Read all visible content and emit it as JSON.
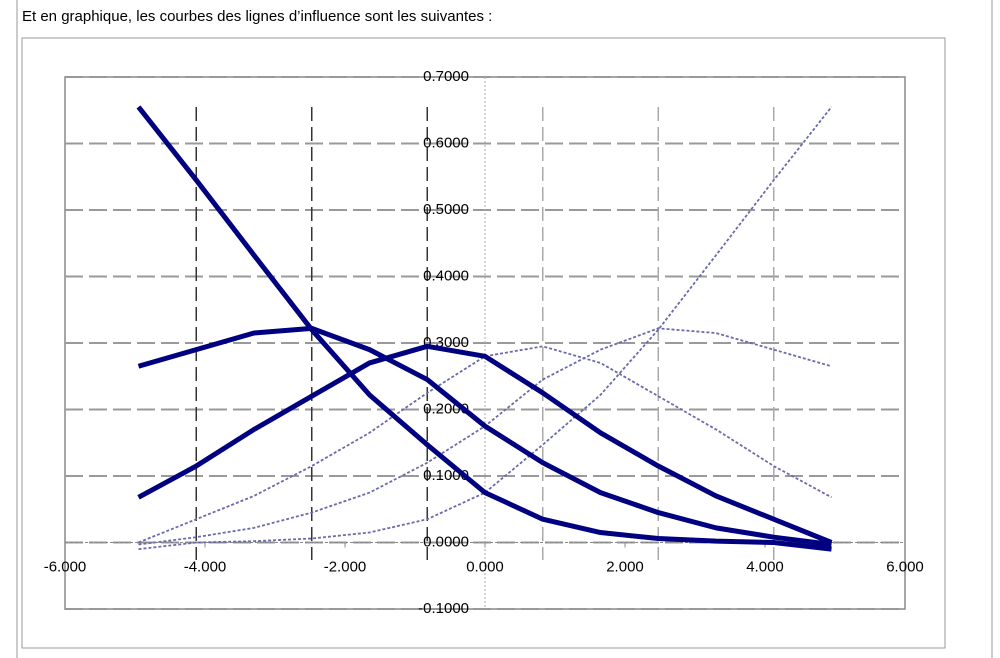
{
  "caption": "Et en graphique, les courbes des lignes d’influence  sont les suivantes :",
  "chart_data": {
    "type": "line",
    "x": [
      -4.95,
      -4.125,
      -3.3,
      -2.475,
      -1.65,
      -0.825,
      0,
      0.825,
      1.65,
      2.475,
      3.3,
      4.125,
      4.95
    ],
    "series": [
      {
        "color": "#000080",
        "style": "solid",
        "values": [
          0.655,
          0.545,
          0.432,
          0.32,
          0.222,
          0.147,
          0.075,
          0.035,
          0.015,
          0.006,
          0.002,
          0.0,
          -0.01
        ]
      },
      {
        "color": "#000080",
        "style": "solid",
        "values": [
          0.265,
          0.29,
          0.315,
          0.322,
          0.29,
          0.245,
          0.175,
          0.12,
          0.075,
          0.045,
          0.022,
          0.008,
          -0.003
        ]
      },
      {
        "color": "#000080",
        "style": "solid",
        "values": [
          0.068,
          0.115,
          0.17,
          0.22,
          0.27,
          0.295,
          0.28,
          0.225,
          0.165,
          0.115,
          0.07,
          0.035,
          0.0
        ]
      },
      {
        "color": "#6b6bab",
        "style": "dotted",
        "values": [
          -0.01,
          0.0,
          0.002,
          0.006,
          0.015,
          0.035,
          0.075,
          0.147,
          0.222,
          0.32,
          0.432,
          0.545,
          0.655
        ]
      },
      {
        "color": "#6b6bab",
        "style": "dotted",
        "values": [
          -0.003,
          0.008,
          0.022,
          0.045,
          0.075,
          0.12,
          0.175,
          0.245,
          0.29,
          0.322,
          0.315,
          0.29,
          0.265
        ]
      },
      {
        "color": "#6b6bab",
        "style": "dotted",
        "values": [
          0.0,
          0.035,
          0.07,
          0.115,
          0.165,
          0.225,
          0.28,
          0.295,
          0.27,
          0.22,
          0.17,
          0.115,
          0.068
        ]
      }
    ],
    "vlines": [
      {
        "x": -4.125,
        "color": "#333333"
      },
      {
        "x": -2.475,
        "color": "#333333"
      },
      {
        "x": -0.825,
        "color": "#333333"
      },
      {
        "x": 0.825,
        "color": "#aaaaaa"
      },
      {
        "x": 2.475,
        "color": "#aaaaaa"
      },
      {
        "x": 4.125,
        "color": "#aaaaaa"
      }
    ],
    "xlim": [
      -6,
      6
    ],
    "xticks": [
      {
        "value": -6,
        "label": "-6.000"
      },
      {
        "value": -4,
        "label": "-4.000"
      },
      {
        "value": -2,
        "label": "-2.000"
      },
      {
        "value": 0,
        "label": "0.000"
      },
      {
        "value": 2,
        "label": "2.000"
      },
      {
        "value": 4,
        "label": "4.000"
      },
      {
        "value": 6,
        "label": "6.000"
      }
    ],
    "ylim": [
      -0.1,
      0.7
    ],
    "yticks": [
      {
        "value": -0.1,
        "label": "-0.1000"
      },
      {
        "value": 0,
        "label": "0.0000"
      },
      {
        "value": 0.1,
        "label": "0.1000"
      },
      {
        "value": 0.2,
        "label": "0.2000"
      },
      {
        "value": 0.3,
        "label": "0.3000"
      },
      {
        "value": 0.4,
        "label": "0.4000"
      },
      {
        "value": 0.5,
        "label": "0.5000"
      },
      {
        "value": 0.6,
        "label": "0.6000"
      },
      {
        "value": 0.7,
        "label": "0.7000"
      }
    ],
    "grid": true
  }
}
